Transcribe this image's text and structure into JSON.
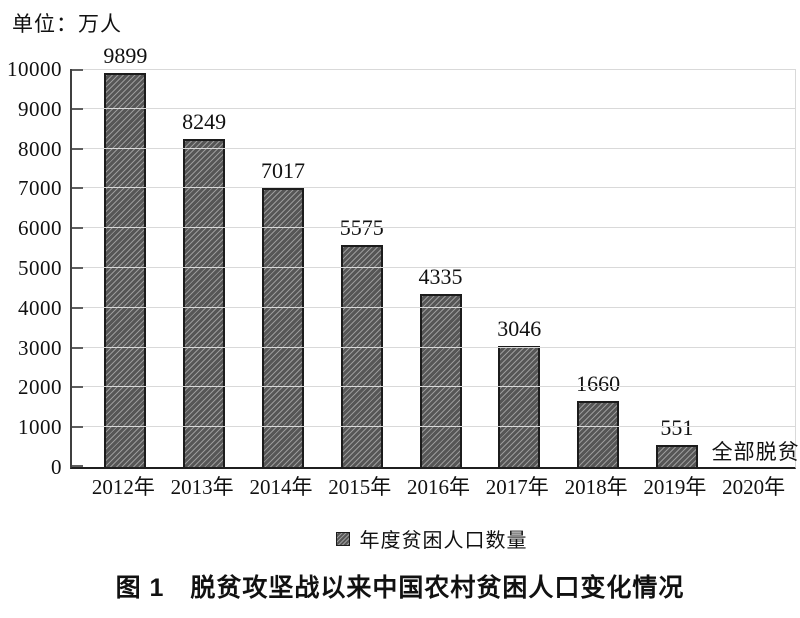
{
  "colors": {
    "bar_fill": "#565656",
    "bar_hatch": "#9a9a9a",
    "bar_border": "#1c1c1c",
    "gridline": "#d9d9d9",
    "axis_left": "#3f3f3f",
    "axis_bottom": "#1f1f1f",
    "plot_right_border": "#d9d9d9",
    "tick": "#5f5f5f",
    "text": "#111111"
  },
  "chart_data": {
    "type": "bar",
    "title": "图 1　脱贫攻坚战以来中国农村贫困人口变化情况",
    "unit_label": "单位：万人",
    "categories": [
      "2012年",
      "2013年",
      "2014年",
      "2015年",
      "2016年",
      "2017年",
      "2018年",
      "2019年",
      "2020年"
    ],
    "values": [
      9899,
      8249,
      7017,
      5575,
      4335,
      3046,
      1660,
      551,
      null
    ],
    "value_labels": [
      "9899",
      "8249",
      "7017",
      "5575",
      "4335",
      "3046",
      "1660",
      "551",
      "全部脱贫"
    ],
    "annotation_2020": "全部脱贫",
    "legend_label": "年度贫困人口数量",
    "legend_position": "bottom",
    "xlabel": "",
    "ylabel": "",
    "ylim": [
      0,
      10000
    ],
    "ytick_step": 1000,
    "ytick_labels": [
      "0",
      "1000",
      "2000",
      "3000",
      "4000",
      "5000",
      "6000",
      "7000",
      "8000",
      "9000",
      "10000"
    ],
    "grid": true
  }
}
